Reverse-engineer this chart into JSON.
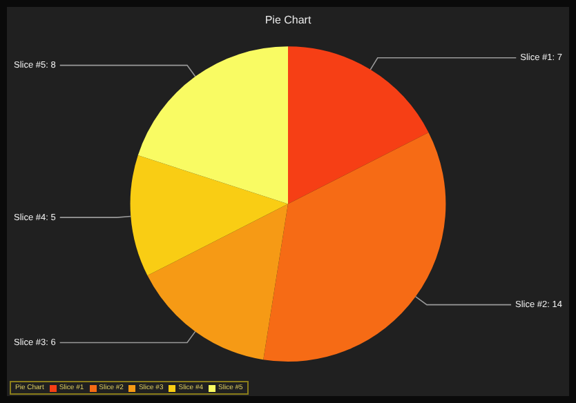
{
  "chart_data": {
    "type": "pie",
    "title": "Pie Chart",
    "legend_title": "Pie Chart",
    "categories": [
      "Slice #1",
      "Slice #2",
      "Slice #3",
      "Slice #4",
      "Slice #5"
    ],
    "values": [
      7,
      14,
      6,
      5,
      8
    ],
    "colors": [
      "#f63f15",
      "#f66b15",
      "#f69a15",
      "#f9cd14",
      "#f9fb63"
    ],
    "value_labels": [
      "Slice #1: 7",
      "Slice #2: 14",
      "Slice #3: 6",
      "Slice #4: 5",
      "Slice #5: 8"
    ],
    "legend": "bottom left"
  }
}
